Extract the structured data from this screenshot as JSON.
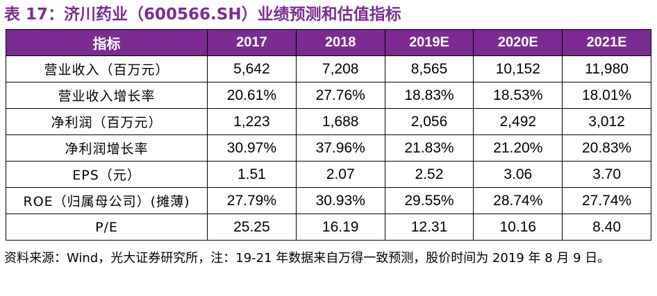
{
  "title": "表 17：济川药业（600566.SH）业绩预测和估值指标",
  "table": {
    "headers": [
      "指标",
      "2017",
      "2018",
      "2019E",
      "2020E",
      "2021E"
    ],
    "rows": [
      {
        "label": "营业收入（百万元）",
        "values": [
          "5,642",
          "7,208",
          "8,565",
          "10,152",
          "11,980"
        ]
      },
      {
        "label": "营业收入增长率",
        "values": [
          "20.61%",
          "27.76%",
          "18.83%",
          "18.53%",
          "18.01%"
        ]
      },
      {
        "label": "净利润（百万元）",
        "values": [
          "1,223",
          "1,688",
          "2,056",
          "2,492",
          "3,012"
        ]
      },
      {
        "label": "净利润增长率",
        "values": [
          "30.97%",
          "37.96%",
          "21.83%",
          "21.20%",
          "20.83%"
        ]
      },
      {
        "label": "EPS（元）",
        "values": [
          "1.51",
          "2.07",
          "2.52",
          "3.06",
          "3.70"
        ]
      },
      {
        "label": "ROE（归属母公司）(摊薄)",
        "values": [
          "27.79%",
          "30.93%",
          "29.55%",
          "28.74%",
          "27.74%"
        ]
      },
      {
        "label": "P/E",
        "values": [
          "25.25",
          "16.19",
          "12.31",
          "10.16",
          "8.40"
        ]
      }
    ]
  },
  "note": "资料来源：Wind，光大证券研究所，注：19-21 年数据来自万得一致预测，股价时间为 2019 年 8 月 9 日。",
  "colors": {
    "header_bg": "#7b2b91",
    "title_text": "#7a2e8e"
  }
}
